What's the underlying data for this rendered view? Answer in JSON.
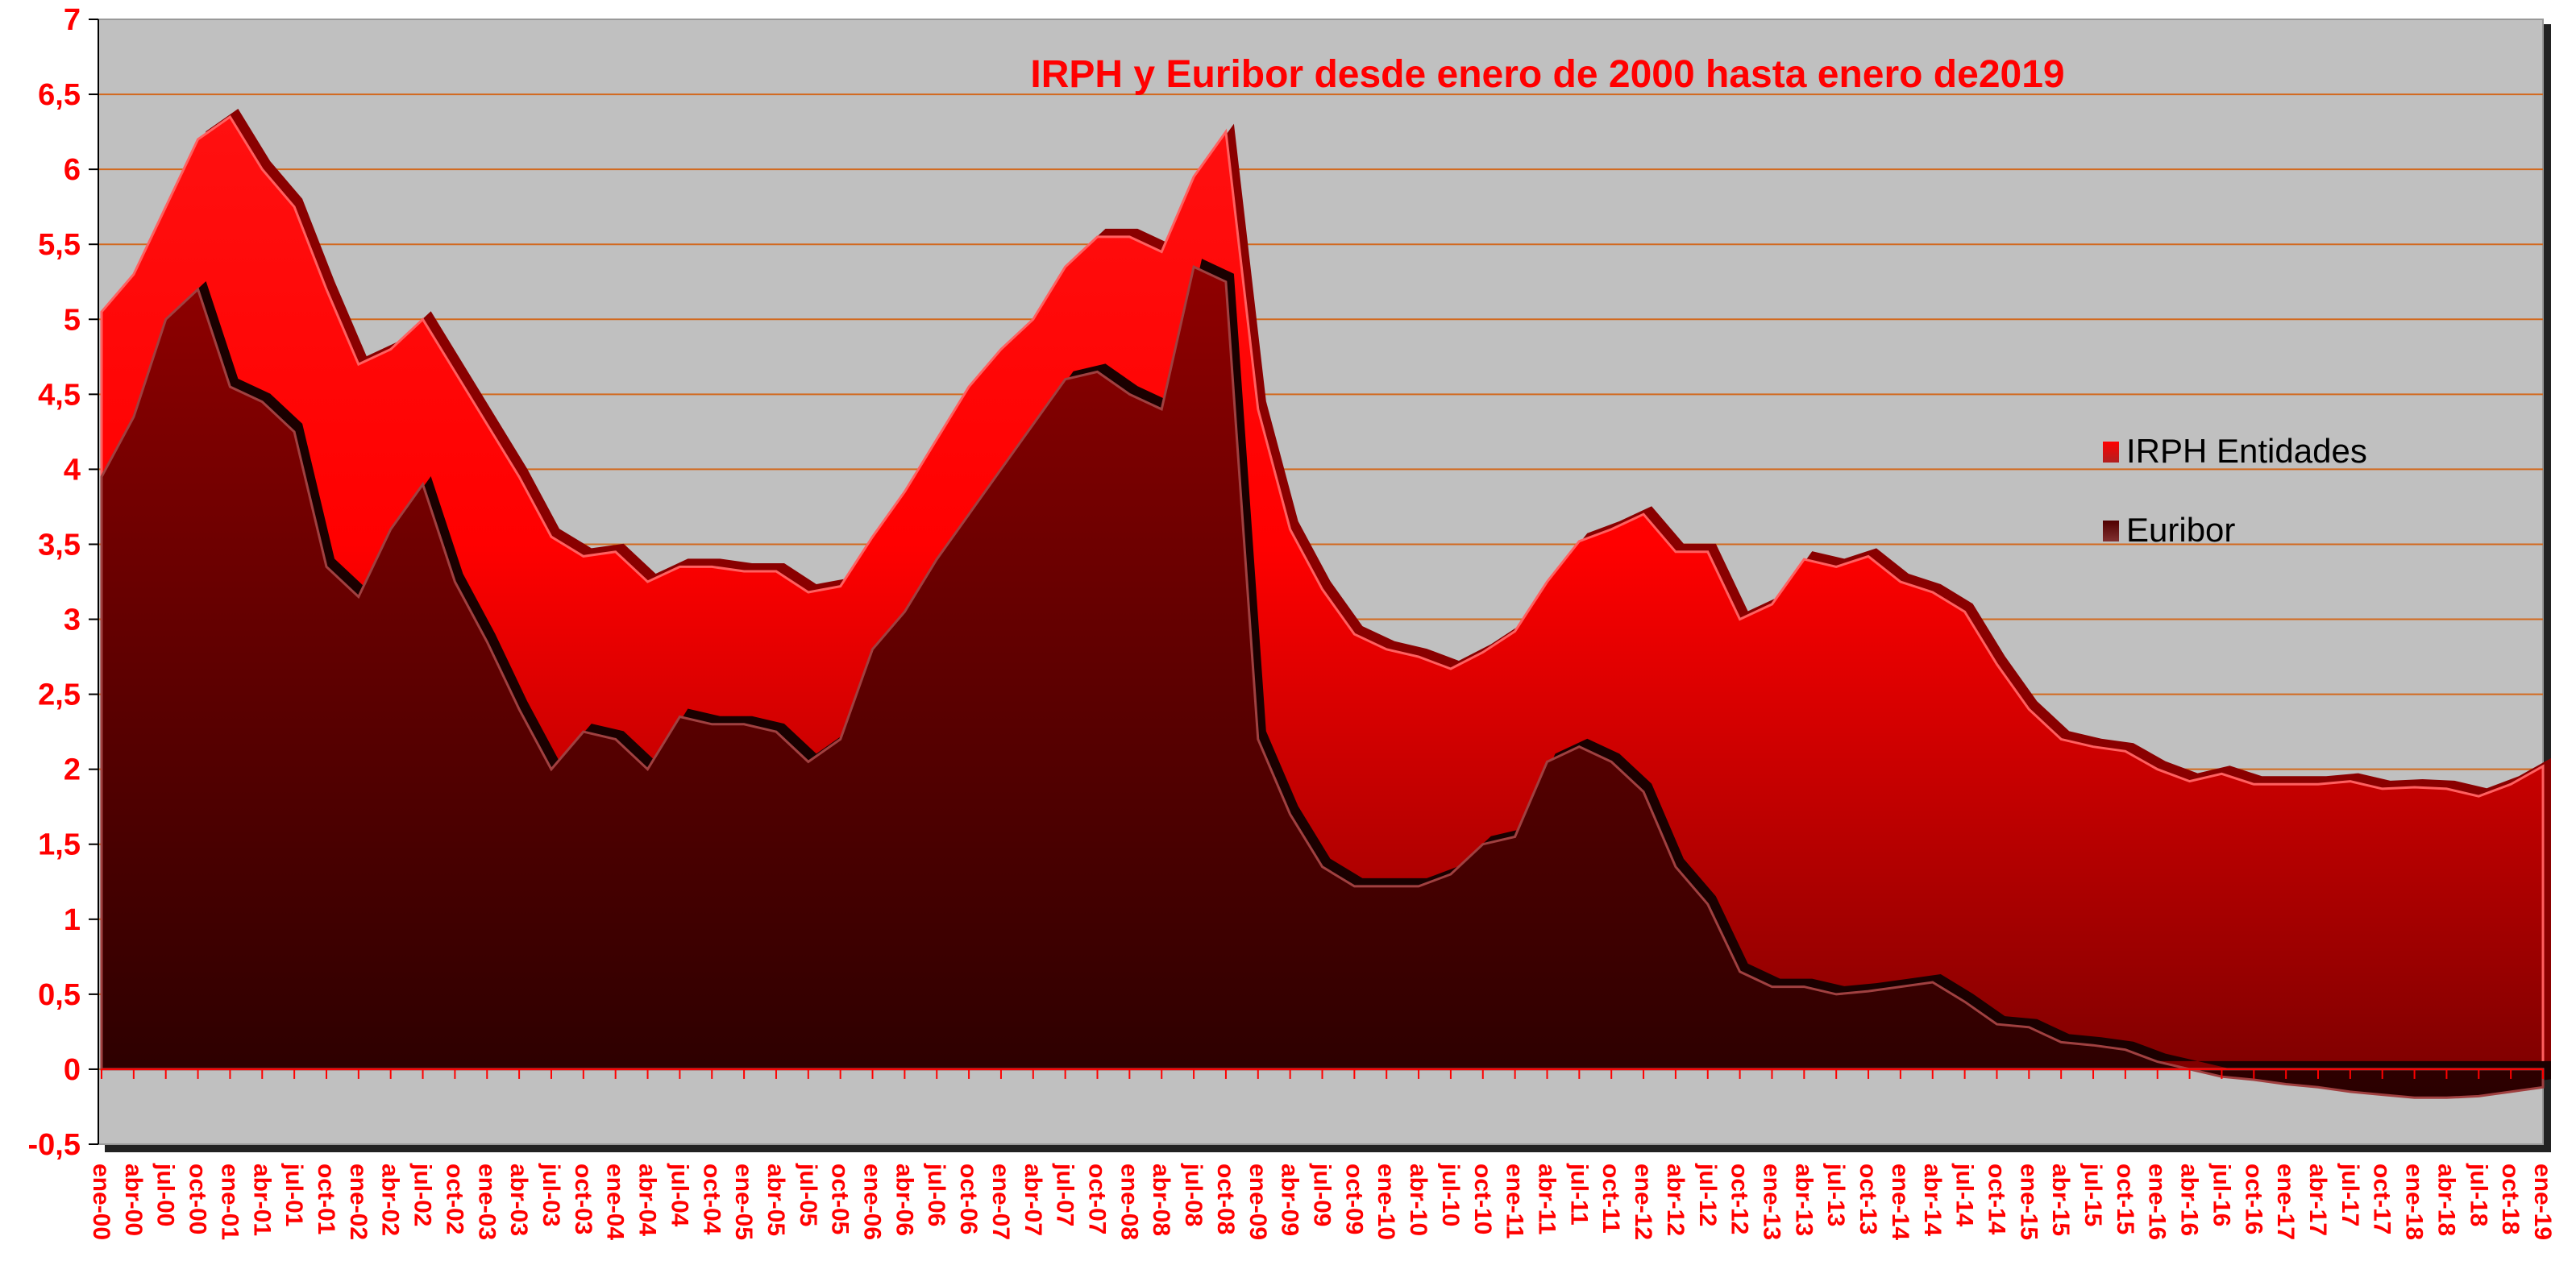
{
  "chart_data": {
    "type": "area",
    "title": "IRPH y Euribor desde enero de 2000 hasta enero de2019",
    "xlabel": "",
    "ylabel": "",
    "ylim": [
      -0.5,
      7
    ],
    "yticks": [
      "-0,5",
      "0",
      "0,5",
      "1",
      "1,5",
      "2",
      "2,5",
      "3",
      "3,5",
      "4",
      "4,5",
      "5",
      "5,5",
      "6",
      "6,5",
      "7"
    ],
    "ytick_values": [
      -0.5,
      0,
      0.5,
      1,
      1.5,
      2,
      2.5,
      3,
      3.5,
      4,
      4.5,
      5,
      5.5,
      6,
      6.5,
      7
    ],
    "grid": true,
    "legend_position": "right",
    "categories": [
      "ene-00",
      "abr-00",
      "jul-00",
      "oct-00",
      "ene-01",
      "abr-01",
      "jul-01",
      "oct-01",
      "ene-02",
      "abr-02",
      "jul-02",
      "oct-02",
      "ene-03",
      "abr-03",
      "jul-03",
      "oct-03",
      "ene-04",
      "abr-04",
      "jul-04",
      "oct-04",
      "ene-05",
      "abr-05",
      "jul-05",
      "oct-05",
      "ene-06",
      "abr-06",
      "jul-06",
      "oct-06",
      "ene-07",
      "abr-07",
      "jul-07",
      "oct-07",
      "ene-08",
      "abr-08",
      "jul-08",
      "oct-08",
      "ene-09",
      "abr-09",
      "jul-09",
      "oct-09",
      "ene-10",
      "abr-10",
      "jul-10",
      "oct-10",
      "ene-11",
      "abr-11",
      "jul-11",
      "oct-11",
      "ene-12",
      "abr-12",
      "jul-12",
      "oct-12",
      "ene-13",
      "abr-13",
      "jul-13",
      "oct-13",
      "ene-14",
      "abr-14",
      "jul-14",
      "oct-14",
      "ene-15",
      "abr-15",
      "jul-15",
      "oct-15",
      "ene-16",
      "abr-16",
      "jul-16",
      "oct-16",
      "ene-17",
      "abr-17",
      "jul-17",
      "oct-17",
      "ene-18",
      "abr-18",
      "jul-18",
      "oct-18",
      "ene-19"
    ],
    "series": [
      {
        "name": "IRPH Entidades",
        "color": "#ff0000",
        "values": [
          5.05,
          5.3,
          5.75,
          6.2,
          6.35,
          6.0,
          5.75,
          5.2,
          4.7,
          4.8,
          5.0,
          4.65,
          4.3,
          3.95,
          3.55,
          3.42,
          3.45,
          3.25,
          3.35,
          3.35,
          3.32,
          3.32,
          3.18,
          3.22,
          3.55,
          3.85,
          4.2,
          4.55,
          4.8,
          5.0,
          5.35,
          5.55,
          5.55,
          5.45,
          5.95,
          6.25,
          4.4,
          3.6,
          3.2,
          2.9,
          2.8,
          2.75,
          2.67,
          2.78,
          2.92,
          3.25,
          3.52,
          3.6,
          3.7,
          3.45,
          3.45,
          3.0,
          3.1,
          3.4,
          3.35,
          3.42,
          3.25,
          3.18,
          3.05,
          2.7,
          2.4,
          2.2,
          2.15,
          2.12,
          2.0,
          1.92,
          1.97,
          1.9,
          1.9,
          1.9,
          1.92,
          1.87,
          1.88,
          1.87,
          1.82,
          1.9,
          2.02
        ]
      },
      {
        "name": "Euribor",
        "color": "#700000",
        "values": [
          3.95,
          4.35,
          5.0,
          5.2,
          4.55,
          4.45,
          4.25,
          3.35,
          3.15,
          3.6,
          3.9,
          3.25,
          2.85,
          2.4,
          2.0,
          2.25,
          2.2,
          2.0,
          2.35,
          2.3,
          2.3,
          2.25,
          2.05,
          2.2,
          2.8,
          3.05,
          3.4,
          3.7,
          4.0,
          4.3,
          4.6,
          4.65,
          4.5,
          4.4,
          5.35,
          5.25,
          2.2,
          1.7,
          1.35,
          1.22,
          1.22,
          1.22,
          1.3,
          1.5,
          1.55,
          2.05,
          2.15,
          2.05,
          1.85,
          1.35,
          1.1,
          0.65,
          0.55,
          0.55,
          0.5,
          0.52,
          0.55,
          0.58,
          0.45,
          0.3,
          0.28,
          0.18,
          0.16,
          0.13,
          0.05,
          0.0,
          -0.05,
          -0.07,
          -0.1,
          -0.12,
          -0.15,
          -0.17,
          -0.19,
          -0.19,
          -0.18,
          -0.15,
          -0.12
        ]
      }
    ]
  }
}
